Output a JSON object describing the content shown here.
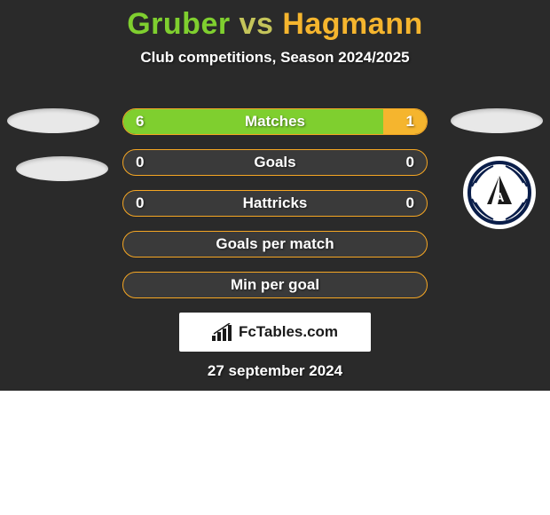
{
  "title": {
    "player1": "Gruber",
    "vs": "vs",
    "player2": "Hagmann",
    "player1_color": "#7fcf2f",
    "vs_color": "#c4c45a",
    "player2_color": "#f5b52e"
  },
  "subtitle": "Club competitions, Season 2024/2025",
  "colors": {
    "panel_bg": "#2a2a2a",
    "left_fill": "#7fcf2f",
    "right_fill": "#f5b52e",
    "bar_border": "#f5a623",
    "text": "#ffffff"
  },
  "stats": [
    {
      "label": "Matches",
      "left_val": "6",
      "right_val": "1",
      "left_pct": 85.7,
      "right_pct": 14.3,
      "show_vals": true
    },
    {
      "label": "Goals",
      "left_val": "0",
      "right_val": "0",
      "left_pct": 0,
      "right_pct": 0,
      "show_vals": true
    },
    {
      "label": "Hattricks",
      "left_val": "0",
      "right_val": "0",
      "left_pct": 0,
      "right_pct": 0,
      "show_vals": true
    },
    {
      "label": "Goals per match",
      "left_val": "",
      "right_val": "",
      "left_pct": 0,
      "right_pct": 0,
      "show_vals": false
    },
    {
      "label": "Min per goal",
      "left_val": "",
      "right_val": "",
      "left_pct": 0,
      "right_pct": 0,
      "show_vals": false
    }
  ],
  "brand": "FcTables.com",
  "date": "27 september 2024",
  "crest": {
    "ring_color": "#0a1e4a",
    "letter": "A"
  }
}
